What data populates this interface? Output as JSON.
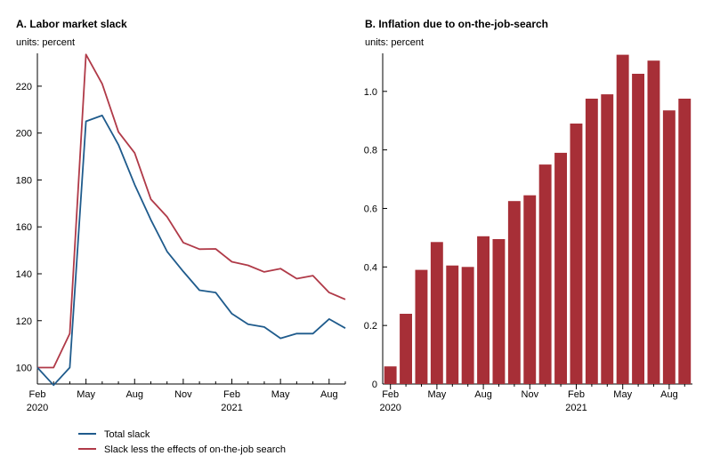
{
  "chart_data": [
    {
      "type": "line",
      "title": "A. Labor market slack",
      "units": "units: percent",
      "ylim": [
        93,
        234
      ],
      "yticks": [
        100,
        120,
        140,
        160,
        180,
        200,
        220
      ],
      "x_labels": [
        {
          "i": 0,
          "label": "Feb",
          "year": "2020"
        },
        {
          "i": 3,
          "label": "May",
          "year": ""
        },
        {
          "i": 6,
          "label": "Aug",
          "year": ""
        },
        {
          "i": 9,
          "label": "Nov",
          "year": ""
        },
        {
          "i": 12,
          "label": "Feb",
          "year": "2021"
        },
        {
          "i": 15,
          "label": "May",
          "year": ""
        },
        {
          "i": 18,
          "label": "Aug",
          "year": ""
        }
      ],
      "series": [
        {
          "name": "Total slack",
          "color": "#1f5b8c",
          "values": [
            100,
            92.5,
            100,
            205,
            207.5,
            195,
            178,
            163,
            149.5,
            141,
            133,
            132,
            123,
            118.5,
            117.3,
            112.5,
            114.5,
            114.5,
            120.7,
            116.8
          ]
        },
        {
          "name": "Slack less the effects of on-the-job search",
          "color": "#b03a48",
          "values": [
            100,
            100,
            114.5,
            233.5,
            221,
            200.5,
            191.5,
            171.8,
            164.3,
            153.3,
            150.5,
            150.6,
            145.1,
            143.6,
            140.8,
            142.2,
            137.9,
            139.2,
            132,
            129.1
          ]
        }
      ]
    },
    {
      "type": "bar",
      "title": "B. Inflation due to on-the-job-search",
      "units": "units: percent",
      "color": "#a72f37",
      "ylim": [
        0,
        1.13
      ],
      "yticks": [
        "0",
        "0.2",
        "0.4",
        "0.6",
        "0.8",
        "1.0"
      ],
      "values": [
        0.06,
        0.24,
        0.39,
        0.485,
        0.405,
        0.4,
        0.505,
        0.495,
        0.625,
        0.645,
        0.75,
        0.79,
        0.89,
        0.975,
        0.99,
        1.125,
        1.06,
        1.105,
        0.935,
        0.975
      ],
      "x_labels": [
        {
          "i": 0,
          "label": "Feb",
          "year": "2020"
        },
        {
          "i": 3,
          "label": "May",
          "year": ""
        },
        {
          "i": 6,
          "label": "Aug",
          "year": ""
        },
        {
          "i": 9,
          "label": "Nov",
          "year": ""
        },
        {
          "i": 12,
          "label": "Feb",
          "year": "2021"
        },
        {
          "i": 15,
          "label": "May",
          "year": ""
        },
        {
          "i": 18,
          "label": "Aug",
          "year": ""
        }
      ]
    }
  ],
  "legend": [
    {
      "label": "Total slack",
      "color": "#1f5b8c"
    },
    {
      "label": "Slack less the effects of on-the-job search",
      "color": "#b03a48"
    }
  ]
}
